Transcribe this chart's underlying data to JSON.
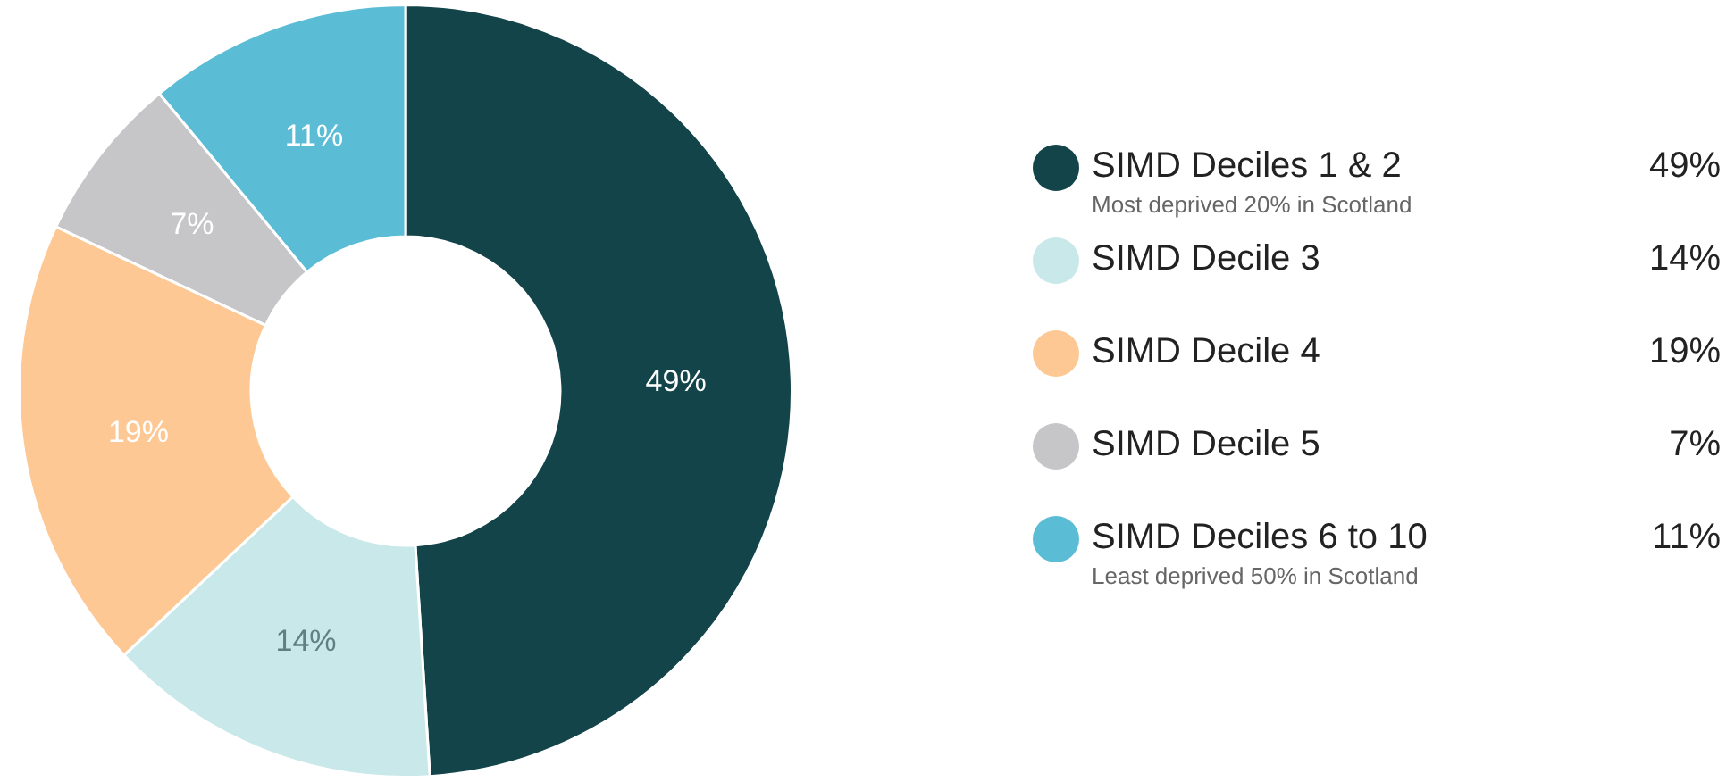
{
  "chart_data": {
    "type": "donut",
    "categories": [
      "SIMD Deciles 1 & 2",
      "SIMD Decile 3",
      "SIMD Decile 4",
      "SIMD Decile 5",
      "SIMD Deciles 6 to 10"
    ],
    "values": [
      49,
      14,
      19,
      7,
      11
    ],
    "value_labels": [
      "49%",
      "14%",
      "19%",
      "7%",
      "11%"
    ],
    "colors": [
      "#12444a",
      "#c9e8ea",
      "#fdc894",
      "#c6c6c9",
      "#5bbcd6"
    ],
    "data_labels": true,
    "legend": "right",
    "annotations": [
      {
        "text": "Most deprived 20% in Scotland",
        "x": "SIMD Deciles 1 & 2"
      },
      {
        "text": "Least deprived 50% in Scotland",
        "x": "SIMD Deciles 6 to 10"
      }
    ]
  }
}
